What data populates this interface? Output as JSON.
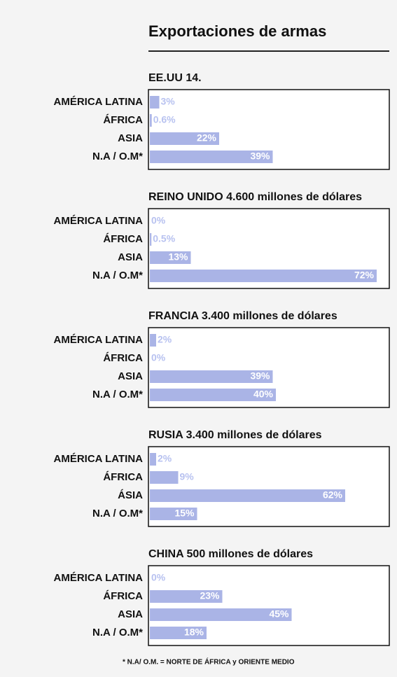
{
  "title": "Exportaciones de armas",
  "footnote": "* N.A/ O.M. = NORTE DE ÁFRICA y ORIENTE MEDIO",
  "chart_data": [
    {
      "type": "bar",
      "title": "EE.UU 14.",
      "color": "#aab4e6",
      "categories": [
        "AMÉRICA LATINA",
        "ÁFRICA",
        "ASIA",
        "N.A / O.M*"
      ],
      "values": [
        3,
        0.6,
        22,
        39
      ],
      "value_labels": [
        "3%",
        "0.6%",
        "22%",
        "39%"
      ]
    },
    {
      "type": "bar",
      "title": "REINO UNIDO 4.600 millones de dólares",
      "color": "#aab4e6",
      "categories": [
        "AMÉRICA LATINA",
        "ÁFRICA",
        "ASIA",
        "N.A / O.M*"
      ],
      "values": [
        0,
        0.5,
        13,
        72
      ],
      "value_labels": [
        "0%",
        "0.5%",
        "13%",
        "72%"
      ]
    },
    {
      "type": "bar",
      "title": "FRANCIA 3.400 millones de dólares",
      "color": "#aab4e6",
      "categories": [
        "AMÉRICA LATINA",
        "ÁFRICA",
        "ASIA",
        "N.A / O.M*"
      ],
      "values": [
        2,
        0,
        39,
        40
      ],
      "value_labels": [
        "2%",
        "0%",
        "39%",
        "40%"
      ]
    },
    {
      "type": "bar",
      "title": "RUSIA 3.400 millones de dólares",
      "color": "#aab4e6",
      "categories": [
        "AMÉRICA LATINA",
        "ÁFRICA",
        "ÁSIA",
        "N.A / O.M*"
      ],
      "values": [
        2,
        9,
        62,
        15
      ],
      "value_labels": [
        "2%",
        "9%",
        "62%",
        "15%"
      ]
    },
    {
      "type": "bar",
      "title": "CHINA 500 millones de dólares",
      "color": "#aab4e6",
      "categories": [
        "AMÉRICA LATINA",
        "ÁFRICA",
        "ASIA",
        "N.A / O.M*"
      ],
      "values": [
        0,
        23,
        45,
        18
      ],
      "value_labels": [
        "0%",
        "23%",
        "45%",
        "18%"
      ]
    }
  ]
}
